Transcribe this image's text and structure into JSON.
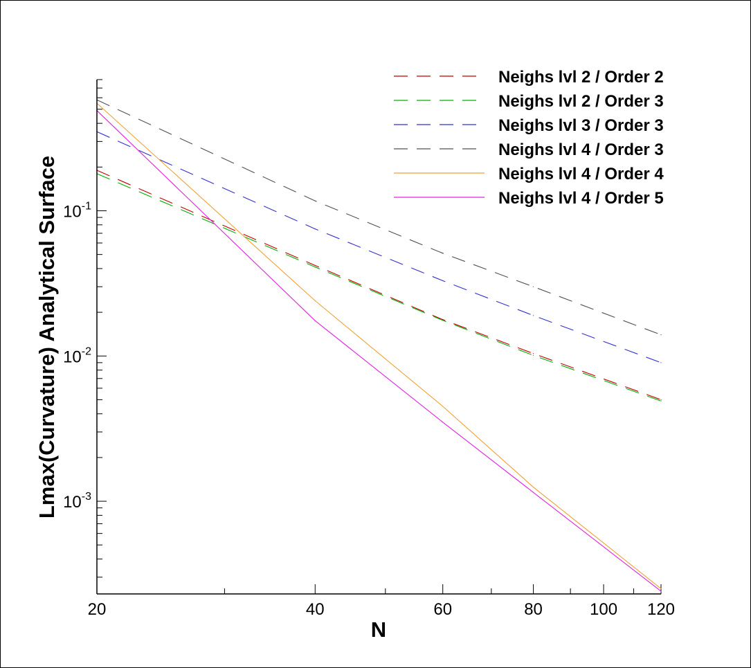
{
  "chart_data": {
    "type": "line",
    "title": "",
    "xlabel": "N",
    "ylabel": "Lmax(Curvature) Analytical Surface",
    "x_scale": "log",
    "y_scale": "log",
    "xlim": [
      20,
      120
    ],
    "ylim": [
      0.00023,
      0.8
    ],
    "grid": false,
    "legend_position": "top-right",
    "x_ticks": [
      {
        "value": 20,
        "label": "20"
      },
      {
        "value": 40,
        "label": "40"
      },
      {
        "value": 60,
        "label": "60"
      },
      {
        "value": 80,
        "label": "80"
      },
      {
        "value": 100,
        "label": "100"
      },
      {
        "value": 120,
        "label": "120"
      }
    ],
    "y_ticks": [
      {
        "value": 0.1,
        "base": "10",
        "exp": "-1"
      },
      {
        "value": 0.01,
        "base": "10",
        "exp": "-2"
      },
      {
        "value": 0.001,
        "base": "10",
        "exp": "-3"
      }
    ],
    "series": [
      {
        "name": "Neighs lvl 2 / Order 2",
        "color": "#c00000",
        "dash": "dashed",
        "x": [
          20,
          40,
          60,
          80,
          120
        ],
        "y": [
          0.19,
          0.042,
          0.0178,
          0.0104,
          0.005
        ]
      },
      {
        "name": "Neighs lvl 2 / Order 3",
        "color": "#00b000",
        "dash": "dashed",
        "x": [
          20,
          40,
          60,
          80,
          120
        ],
        "y": [
          0.18,
          0.041,
          0.0176,
          0.0101,
          0.0049
        ]
      },
      {
        "name": "Neighs lvl 3 / Order 3",
        "color": "#3030d0",
        "dash": "dashed",
        "x": [
          20,
          40,
          60,
          80,
          120
        ],
        "y": [
          0.35,
          0.075,
          0.033,
          0.019,
          0.009
        ]
      },
      {
        "name": "Neighs lvl 4 / Order 3",
        "color": "#505050",
        "dash": "dashed",
        "x": [
          20,
          40,
          60,
          80,
          120
        ],
        "y": [
          0.58,
          0.117,
          0.051,
          0.03,
          0.014
        ]
      },
      {
        "name": "Neighs lvl 4 / Order 4",
        "color": "#f0a030",
        "dash": "solid",
        "x": [
          20,
          40,
          60,
          80,
          120
        ],
        "y": [
          0.55,
          0.024,
          0.0045,
          0.00125,
          0.00025
        ]
      },
      {
        "name": "Neighs lvl 4 / Order 5",
        "color": "#e020e0",
        "dash": "solid",
        "x": [
          20,
          40,
          60,
          80,
          120
        ],
        "y": [
          0.49,
          0.0175,
          0.0035,
          0.00115,
          0.00024
        ]
      }
    ]
  }
}
